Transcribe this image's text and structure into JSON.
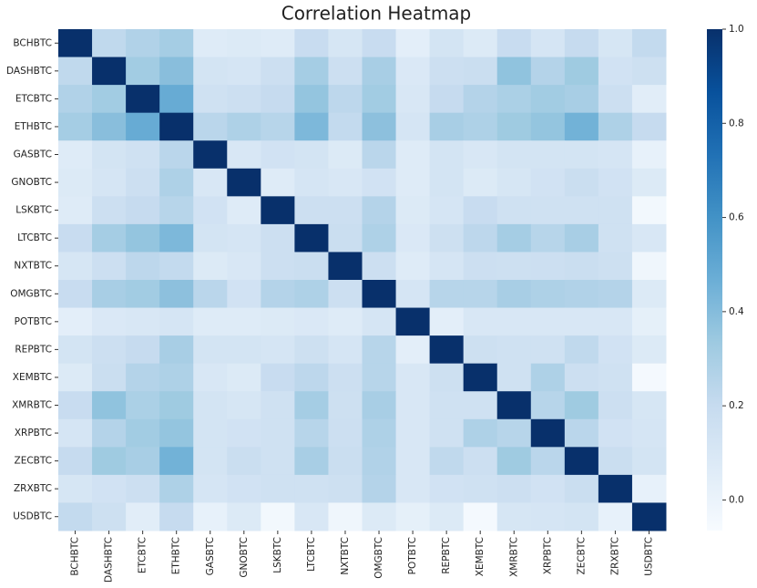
{
  "chart_data": {
    "type": "heatmap",
    "title": "Correlation Heatmap",
    "colormap": "Blues",
    "categories": [
      "BCHBTC",
      "DASHBTC",
      "ETCBTC",
      "ETHBTC",
      "GASBTC",
      "GNOBTC",
      "LSKBTC",
      "LTCBTC",
      "NXTBTC",
      "OMGBTC",
      "POTBTC",
      "REPBTC",
      "XEMBTC",
      "XMRBTC",
      "XRPBTC",
      "ZECBTC",
      "ZRXBTC",
      "USDBTC"
    ],
    "values": [
      [
        1,
        0.22,
        0.27,
        0.31,
        0.07,
        0.08,
        0.07,
        0.19,
        0.11,
        0.19,
        0.04,
        0.13,
        0.08,
        0.19,
        0.12,
        0.2,
        0.11,
        0.21
      ],
      [
        0.22,
        1,
        0.32,
        0.39,
        0.13,
        0.12,
        0.17,
        0.31,
        0.17,
        0.3,
        0.09,
        0.17,
        0.18,
        0.37,
        0.26,
        0.33,
        0.14,
        0.16
      ],
      [
        0.27,
        0.32,
        1,
        0.48,
        0.15,
        0.17,
        0.2,
        0.36,
        0.23,
        0.32,
        0.1,
        0.2,
        0.26,
        0.29,
        0.32,
        0.3,
        0.17,
        0.05
      ],
      [
        0.31,
        0.39,
        0.48,
        1,
        0.24,
        0.28,
        0.25,
        0.42,
        0.21,
        0.38,
        0.12,
        0.3,
        0.28,
        0.33,
        0.36,
        0.45,
        0.28,
        0.2
      ],
      [
        0.07,
        0.13,
        0.15,
        0.24,
        1,
        0.1,
        0.14,
        0.13,
        0.08,
        0.24,
        0.07,
        0.13,
        0.1,
        0.13,
        0.13,
        0.13,
        0.12,
        0.02
      ],
      [
        0.08,
        0.12,
        0.17,
        0.28,
        0.1,
        1,
        0.07,
        0.12,
        0.1,
        0.14,
        0.07,
        0.13,
        0.08,
        0.11,
        0.14,
        0.18,
        0.14,
        0.08
      ],
      [
        0.07,
        0.17,
        0.2,
        0.25,
        0.14,
        0.07,
        1,
        0.17,
        0.17,
        0.26,
        0.08,
        0.12,
        0.19,
        0.15,
        0.15,
        0.15,
        0.15,
        -0.04
      ],
      [
        0.19,
        0.31,
        0.36,
        0.42,
        0.13,
        0.12,
        0.17,
        1,
        0.18,
        0.28,
        0.09,
        0.16,
        0.23,
        0.31,
        0.25,
        0.3,
        0.15,
        0.1
      ],
      [
        0.11,
        0.17,
        0.23,
        0.21,
        0.08,
        0.1,
        0.17,
        0.18,
        1,
        0.17,
        0.07,
        0.12,
        0.17,
        0.16,
        0.17,
        0.18,
        0.16,
        -0.02
      ],
      [
        0.19,
        0.3,
        0.32,
        0.38,
        0.24,
        0.14,
        0.26,
        0.28,
        0.17,
        1,
        0.12,
        0.25,
        0.25,
        0.3,
        0.28,
        0.27,
        0.26,
        0.08
      ],
      [
        0.04,
        0.09,
        0.1,
        0.12,
        0.07,
        0.07,
        0.08,
        0.09,
        0.07,
        0.12,
        1,
        0.04,
        0.1,
        0.1,
        0.1,
        0.1,
        0.1,
        0.03
      ],
      [
        0.13,
        0.17,
        0.2,
        0.3,
        0.13,
        0.13,
        0.12,
        0.16,
        0.12,
        0.25,
        0.04,
        1,
        0.16,
        0.15,
        0.15,
        0.22,
        0.14,
        0.08
      ],
      [
        0.08,
        0.18,
        0.26,
        0.28,
        0.1,
        0.08,
        0.19,
        0.23,
        0.17,
        0.25,
        0.1,
        0.16,
        1,
        0.15,
        0.28,
        0.17,
        0.15,
        -0.05
      ],
      [
        0.19,
        0.37,
        0.29,
        0.33,
        0.13,
        0.11,
        0.15,
        0.31,
        0.16,
        0.3,
        0.1,
        0.15,
        0.15,
        1,
        0.25,
        0.33,
        0.17,
        0.11
      ],
      [
        0.12,
        0.26,
        0.32,
        0.36,
        0.13,
        0.14,
        0.15,
        0.25,
        0.17,
        0.28,
        0.1,
        0.15,
        0.28,
        0.25,
        1,
        0.24,
        0.14,
        0.12
      ],
      [
        0.2,
        0.33,
        0.3,
        0.45,
        0.13,
        0.18,
        0.15,
        0.3,
        0.18,
        0.27,
        0.1,
        0.22,
        0.17,
        0.33,
        0.24,
        1,
        0.18,
        0.13
      ],
      [
        0.11,
        0.14,
        0.17,
        0.28,
        0.12,
        0.14,
        0.15,
        0.15,
        0.16,
        0.26,
        0.1,
        0.14,
        0.15,
        0.17,
        0.14,
        0.18,
        1,
        0.02
      ],
      [
        0.21,
        0.16,
        0.05,
        0.2,
        0.02,
        0.08,
        -0.04,
        0.1,
        -0.02,
        0.08,
        0.03,
        0.08,
        -0.05,
        0.11,
        0.12,
        0.13,
        0.02,
        1
      ]
    ],
    "zlim": [
      -0.065,
      1.0
    ],
    "zticks": [
      {
        "value": 0,
        "label": "0.0"
      },
      0.2,
      0.4,
      0.6,
      0.8,
      {
        "value": 1,
        "label": "1.0"
      }
    ]
  }
}
